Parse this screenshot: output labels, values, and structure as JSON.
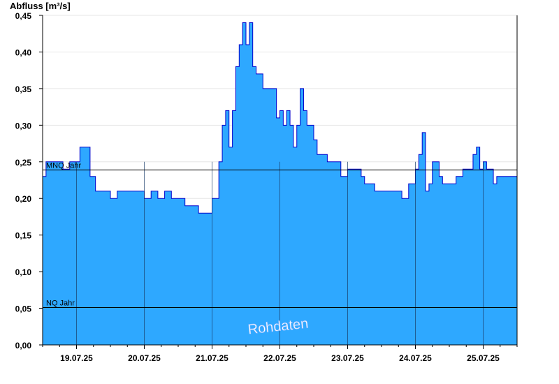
{
  "chart_data": {
    "type": "area",
    "ylabel": "Abfluss [m³/s]",
    "ylim": [
      0,
      0.45
    ],
    "yticks": [
      "0,00",
      "0,05",
      "0,10",
      "0,15",
      "0,20",
      "0,25",
      "0,30",
      "0,35",
      "0,40",
      "0,45"
    ],
    "xticks": [
      "19.07.25",
      "20.07.25",
      "21.07.25",
      "22.07.25",
      "23.07.25",
      "24.07.25",
      "25.07.25"
    ],
    "x_range_days": [
      18.5,
      25.5
    ],
    "watermark": "Rohdaten",
    "reference_lines": [
      {
        "label": "MNQ Jahr",
        "value": 0.239
      },
      {
        "label": "NQ Jahr",
        "value": 0.051
      }
    ],
    "colors": {
      "fill": "#2ea8ff",
      "line": "#0000cc",
      "refline": "#000000",
      "grid": "#e6e6e6",
      "daygrid": "#1a3d6b"
    },
    "series": [
      {
        "points": [
          [
            18.5,
            0.23
          ],
          [
            18.55,
            0.25
          ],
          [
            18.62,
            0.25
          ],
          [
            18.7,
            0.25
          ],
          [
            18.8,
            0.24
          ],
          [
            18.9,
            0.25
          ],
          [
            19.0,
            0.25
          ],
          [
            19.05,
            0.27
          ],
          [
            19.15,
            0.27
          ],
          [
            19.2,
            0.23
          ],
          [
            19.28,
            0.21
          ],
          [
            19.35,
            0.21
          ],
          [
            19.45,
            0.21
          ],
          [
            19.5,
            0.2
          ],
          [
            19.6,
            0.21
          ],
          [
            19.7,
            0.21
          ],
          [
            19.8,
            0.21
          ],
          [
            19.9,
            0.21
          ],
          [
            20.0,
            0.2
          ],
          [
            20.1,
            0.21
          ],
          [
            20.2,
            0.2
          ],
          [
            20.3,
            0.21
          ],
          [
            20.4,
            0.2
          ],
          [
            20.5,
            0.2
          ],
          [
            20.6,
            0.19
          ],
          [
            20.7,
            0.19
          ],
          [
            20.8,
            0.18
          ],
          [
            20.9,
            0.18
          ],
          [
            21.0,
            0.2
          ],
          [
            21.1,
            0.25
          ],
          [
            21.15,
            0.3
          ],
          [
            21.2,
            0.32
          ],
          [
            21.25,
            0.27
          ],
          [
            21.3,
            0.32
          ],
          [
            21.35,
            0.38
          ],
          [
            21.4,
            0.41
          ],
          [
            21.45,
            0.44
          ],
          [
            21.5,
            0.41
          ],
          [
            21.55,
            0.44
          ],
          [
            21.6,
            0.38
          ],
          [
            21.65,
            0.37
          ],
          [
            21.75,
            0.35
          ],
          [
            21.85,
            0.35
          ],
          [
            21.95,
            0.31
          ],
          [
            22.0,
            0.32
          ],
          [
            22.05,
            0.3
          ],
          [
            22.1,
            0.32
          ],
          [
            22.15,
            0.3
          ],
          [
            22.2,
            0.27
          ],
          [
            22.25,
            0.3
          ],
          [
            22.3,
            0.35
          ],
          [
            22.35,
            0.32
          ],
          [
            22.4,
            0.3
          ],
          [
            22.5,
            0.28
          ],
          [
            22.55,
            0.26
          ],
          [
            22.6,
            0.26
          ],
          [
            22.7,
            0.25
          ],
          [
            22.8,
            0.25
          ],
          [
            22.9,
            0.23
          ],
          [
            23.0,
            0.24
          ],
          [
            23.1,
            0.24
          ],
          [
            23.2,
            0.23
          ],
          [
            23.25,
            0.22
          ],
          [
            23.3,
            0.22
          ],
          [
            23.4,
            0.21
          ],
          [
            23.5,
            0.21
          ],
          [
            23.6,
            0.21
          ],
          [
            23.7,
            0.21
          ],
          [
            23.8,
            0.2
          ],
          [
            23.9,
            0.22
          ],
          [
            24.0,
            0.24
          ],
          [
            24.05,
            0.26
          ],
          [
            24.1,
            0.29
          ],
          [
            24.15,
            0.21
          ],
          [
            24.2,
            0.22
          ],
          [
            24.25,
            0.25
          ],
          [
            24.3,
            0.25
          ],
          [
            24.35,
            0.23
          ],
          [
            24.4,
            0.22
          ],
          [
            24.5,
            0.22
          ],
          [
            24.6,
            0.23
          ],
          [
            24.7,
            0.24
          ],
          [
            24.8,
            0.24
          ],
          [
            24.85,
            0.26
          ],
          [
            24.9,
            0.27
          ],
          [
            24.95,
            0.24
          ],
          [
            25.0,
            0.25
          ],
          [
            25.05,
            0.24
          ],
          [
            25.1,
            0.24
          ],
          [
            25.15,
            0.22
          ],
          [
            25.2,
            0.23
          ],
          [
            25.3,
            0.23
          ],
          [
            25.4,
            0.23
          ],
          [
            25.5,
            0.23
          ]
        ]
      }
    ]
  }
}
